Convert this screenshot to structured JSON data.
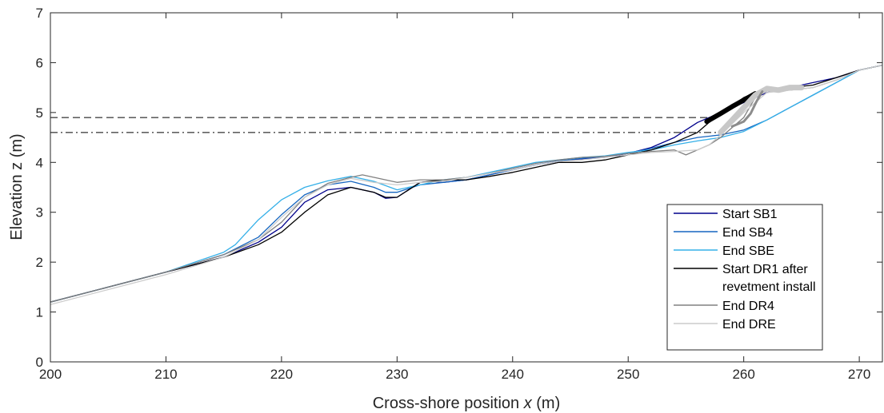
{
  "chart_data": {
    "type": "line",
    "title": "",
    "xlabel_pre": "Cross-shore position ",
    "xlabel_var": "x",
    "xlabel_post": " (m)",
    "ylabel": "Elevation z (m)",
    "xlim": [
      200,
      272
    ],
    "ylim": [
      0,
      7
    ],
    "xticks": [
      200,
      210,
      220,
      230,
      240,
      250,
      260,
      270
    ],
    "yticks": [
      0,
      1,
      2,
      3,
      4,
      5,
      6,
      7
    ],
    "grid": false,
    "legend_position": "bottom-right",
    "reference_lines": [
      {
        "style": "dashed",
        "y": 4.9,
        "x_range": [
          200,
          257
        ]
      },
      {
        "style": "dash-dot",
        "y": 4.6,
        "x_range": [
          200,
          258
        ]
      }
    ],
    "series": [
      {
        "name": "Start SB1",
        "color": "#00008b",
        "width": 1.3,
        "x": [
          200,
          205,
          210,
          215,
          218,
          220,
          222,
          224,
          226,
          228,
          229,
          230,
          231,
          232,
          233,
          234,
          236,
          238,
          240,
          242,
          244,
          246,
          248,
          250,
          252,
          254,
          256,
          258,
          260,
          262,
          264,
          266,
          268,
          270,
          272
        ],
        "y": [
          1.2,
          1.5,
          1.8,
          2.1,
          2.4,
          2.7,
          3.2,
          3.45,
          3.5,
          3.4,
          3.28,
          3.3,
          3.45,
          3.6,
          3.62,
          3.6,
          3.65,
          3.75,
          3.85,
          3.95,
          4.02,
          4.07,
          4.1,
          4.18,
          4.3,
          4.5,
          4.8,
          5.0,
          5.2,
          5.4,
          5.5,
          5.6,
          5.7,
          5.85,
          5.95
        ]
      },
      {
        "name": "End SB4",
        "color": "#1565c0",
        "width": 1.3,
        "x": [
          200,
          205,
          210,
          215,
          218,
          220,
          222,
          224,
          226,
          228,
          229,
          230,
          232,
          234,
          236,
          238,
          240,
          242,
          244,
          246,
          248,
          250,
          252,
          254,
          256,
          258,
          260,
          262,
          264,
          266,
          268,
          270,
          272
        ],
        "y": [
          1.2,
          1.5,
          1.8,
          2.15,
          2.5,
          2.95,
          3.35,
          3.55,
          3.62,
          3.5,
          3.4,
          3.4,
          3.55,
          3.6,
          3.65,
          3.75,
          3.85,
          3.95,
          4.03,
          4.08,
          4.12,
          4.18,
          4.28,
          4.4,
          4.5,
          4.55,
          4.65,
          4.85,
          5.1,
          5.35,
          5.6,
          5.85,
          5.95
        ]
      },
      {
        "name": "End SBE",
        "color": "#35b0e8",
        "width": 1.3,
        "x": [
          200,
          205,
          210,
          215,
          216,
          218,
          220,
          222,
          224,
          226,
          228,
          230,
          232,
          234,
          236,
          238,
          240,
          242,
          244,
          246,
          248,
          250,
          252,
          254,
          256,
          258,
          260,
          262,
          264,
          266,
          268,
          270,
          272
        ],
        "y": [
          1.2,
          1.5,
          1.8,
          2.2,
          2.35,
          2.85,
          3.25,
          3.5,
          3.63,
          3.72,
          3.62,
          3.45,
          3.55,
          3.65,
          3.7,
          3.8,
          3.9,
          4.0,
          4.05,
          4.1,
          4.13,
          4.2,
          4.25,
          4.35,
          4.43,
          4.5,
          4.62,
          4.85,
          5.1,
          5.35,
          5.6,
          5.85,
          5.95
        ]
      },
      {
        "name": "Start DR1 after revetment install",
        "legend_lines": [
          "Start DR1 after",
          "revetment install"
        ],
        "color": "#000000",
        "width": 1.3,
        "x": [
          200,
          205,
          210,
          215,
          218,
          220,
          222,
          224,
          226,
          228,
          229,
          230,
          232,
          234,
          236,
          238,
          240,
          242,
          244,
          246,
          248,
          250,
          252,
          254,
          256,
          257,
          260,
          261,
          262,
          264,
          266,
          268,
          270,
          272
        ],
        "y": [
          1.2,
          1.5,
          1.8,
          2.1,
          2.35,
          2.6,
          3.0,
          3.35,
          3.5,
          3.4,
          3.3,
          3.3,
          3.6,
          3.65,
          3.65,
          3.72,
          3.8,
          3.9,
          4.0,
          4.0,
          4.05,
          4.15,
          4.25,
          4.4,
          4.6,
          4.8,
          5.3,
          5.4,
          5.45,
          5.5,
          5.55,
          5.7,
          5.85,
          5.95
        ]
      },
      {
        "name": "End DR4",
        "color": "#808080",
        "width": 1.3,
        "x": [
          200,
          205,
          210,
          215,
          218,
          220,
          222,
          224,
          226,
          227,
          228,
          230,
          232,
          234,
          236,
          238,
          240,
          242,
          244,
          246,
          248,
          250,
          252,
          254,
          255,
          256,
          257,
          258,
          260,
          261,
          262,
          264,
          266,
          268,
          270,
          272
        ],
        "y": [
          1.2,
          1.5,
          1.8,
          2.15,
          2.45,
          2.8,
          3.3,
          3.58,
          3.7,
          3.75,
          3.7,
          3.6,
          3.65,
          3.65,
          3.7,
          3.78,
          3.88,
          3.98,
          4.05,
          4.1,
          4.12,
          4.18,
          4.22,
          4.25,
          4.15,
          4.25,
          4.35,
          4.5,
          4.9,
          5.3,
          5.45,
          5.45,
          5.5,
          5.65,
          5.85,
          5.95
        ]
      },
      {
        "name": "End DRE",
        "color": "#cccccc",
        "width": 1.3,
        "x": [
          200,
          205,
          210,
          215,
          218,
          220,
          222,
          224,
          226,
          228,
          230,
          232,
          234,
          236,
          238,
          240,
          242,
          244,
          246,
          248,
          250,
          252,
          254,
          256,
          257,
          258,
          260,
          262,
          264,
          266,
          268,
          270,
          272
        ],
        "y": [
          1.15,
          1.45,
          1.75,
          2.1,
          2.45,
          2.9,
          3.3,
          3.55,
          3.68,
          3.6,
          3.55,
          3.6,
          3.62,
          3.7,
          3.78,
          3.85,
          3.95,
          4.02,
          4.05,
          4.1,
          4.15,
          4.2,
          4.22,
          4.25,
          4.35,
          4.55,
          5.0,
          5.4,
          5.45,
          5.5,
          5.65,
          5.85,
          5.95
        ]
      }
    ],
    "revetment_bands": [
      {
        "color": "#000000",
        "width": 6,
        "x": [
          256.8,
          258,
          259,
          260,
          261
        ],
        "y": [
          4.82,
          4.98,
          5.12,
          5.25,
          5.38
        ]
      },
      {
        "color": "#c8c8c8",
        "width": 7,
        "x": [
          258,
          259,
          260,
          261,
          262,
          263,
          264,
          265
        ],
        "y": [
          4.6,
          4.85,
          5.1,
          5.35,
          5.48,
          5.45,
          5.5,
          5.5
        ]
      },
      {
        "color": "#8c8c8c",
        "width": 3,
        "x": [
          259,
          260,
          260.6,
          261.1,
          261.6
        ],
        "y": [
          4.72,
          4.82,
          4.98,
          5.22,
          5.42
        ]
      }
    ]
  }
}
